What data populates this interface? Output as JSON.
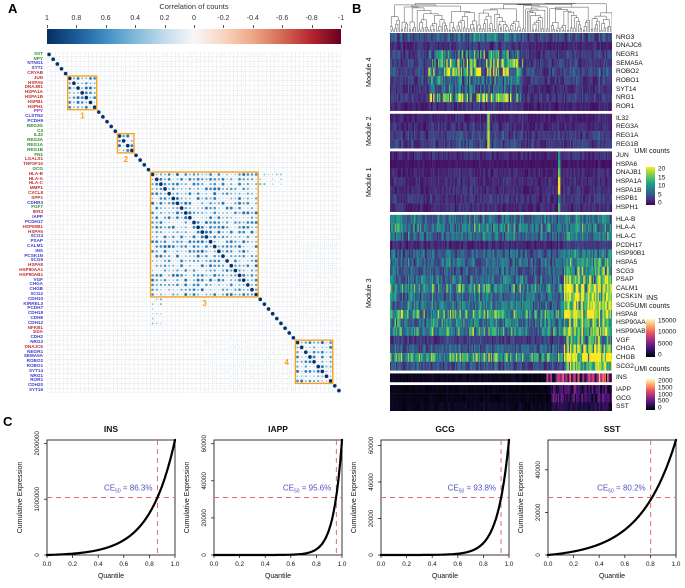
{
  "panel_labels": {
    "a": "A",
    "b": "B",
    "c": "C"
  },
  "chart_data": [
    {
      "id": "correlation-matrix",
      "type": "heatmap",
      "subtype": "corrplot-dots",
      "colorbar": {
        "title": "Correlation of counts",
        "ticks": [
          "1",
          "0.8",
          "0.6",
          "0.4",
          "0.2",
          "0",
          "-0.2",
          "-0.4",
          "-0.6",
          "-0.8",
          "-1"
        ],
        "stops": [
          "#053061",
          "#1c5a99",
          "#3e8ec4",
          "#7fb9da",
          "#c3dcec",
          "#f7f7f7",
          "#f9d5c0",
          "#eea785",
          "#d56954",
          "#b52430",
          "#67001f"
        ]
      },
      "label_palette": {
        "g": "#2e8b2e",
        "r": "#c62f2f",
        "b": "#3c3ccd",
        "p": "#8a36c9"
      },
      "genes": [
        [
          "SST",
          "g"
        ],
        [
          "NPY",
          "g"
        ],
        [
          "NTNG1",
          "b"
        ],
        [
          "SYT1",
          "b"
        ],
        [
          "CRYAB",
          "r"
        ],
        [
          "JUN",
          "r"
        ],
        [
          "HSPA6",
          "r"
        ],
        [
          "DNAJB1",
          "r"
        ],
        [
          "HSPA1A",
          "r"
        ],
        [
          "HSPA1B",
          "r"
        ],
        [
          "HSPB1",
          "r"
        ],
        [
          "HSPH1",
          "r"
        ],
        [
          "PPY",
          "p"
        ],
        [
          "CLSTN2",
          "b"
        ],
        [
          "PCDH9",
          "b"
        ],
        [
          "REG3G",
          "g"
        ],
        [
          "C3",
          "g"
        ],
        [
          "IL32",
          "g"
        ],
        [
          "REG3A",
          "g"
        ],
        [
          "REG1A",
          "g"
        ],
        [
          "REG1B",
          "g"
        ],
        [
          "FN1",
          "g"
        ],
        [
          "LGALS1",
          "r"
        ],
        [
          "TNFSF10",
          "r"
        ],
        [
          "GCG",
          "g"
        ],
        [
          "HLA-B",
          "r"
        ],
        [
          "HLA-A",
          "r"
        ],
        [
          "HLA-C",
          "r"
        ],
        [
          "MMP1",
          "r"
        ],
        [
          "CXCL8",
          "r"
        ],
        [
          "SPP1",
          "r"
        ],
        [
          "CDHR3",
          "b"
        ],
        [
          "FGF7",
          "g"
        ],
        [
          "IER3",
          "r"
        ],
        [
          "IAPP",
          "b"
        ],
        [
          "PCDH17",
          "b"
        ],
        [
          "HSP90B1",
          "r"
        ],
        [
          "HSPA5",
          "r"
        ],
        [
          "SCG3",
          "b"
        ],
        [
          "PSAP",
          "b"
        ],
        [
          "CALM1",
          "b"
        ],
        [
          "INS",
          "b"
        ],
        [
          "PCSK1N",
          "b"
        ],
        [
          "SCG5",
          "b"
        ],
        [
          "HSPA8",
          "r"
        ],
        [
          "HSP90AA1",
          "r"
        ],
        [
          "HSP90AB1",
          "r"
        ],
        [
          "VGF",
          "b"
        ],
        [
          "CHGA",
          "b"
        ],
        [
          "CHGB",
          "b"
        ],
        [
          "SCG2",
          "b"
        ],
        [
          "CDH10",
          "b"
        ],
        [
          "KIRREL3",
          "b"
        ],
        [
          "PCDH7",
          "b"
        ],
        [
          "CDH18",
          "b"
        ],
        [
          "CDH8",
          "b"
        ],
        [
          "CDH12",
          "b"
        ],
        [
          "NFKB1",
          "r"
        ],
        [
          "EDA",
          "r"
        ],
        [
          "CDH2",
          "b"
        ],
        [
          "NRG3",
          "b"
        ],
        [
          "DNAJC6",
          "r"
        ],
        [
          "NEGR1",
          "b"
        ],
        [
          "SEMA5A",
          "b"
        ],
        [
          "ROBO2",
          "b"
        ],
        [
          "ROBO1",
          "b"
        ],
        [
          "SYT14",
          "b"
        ],
        [
          "NRG1",
          "b"
        ],
        [
          "ROR1",
          "b"
        ],
        [
          "CDH20",
          "b"
        ],
        [
          "SYT16",
          "b"
        ]
      ],
      "boxes": [
        {
          "id": "1",
          "from": 5,
          "to": 11,
          "label_pos": "below"
        },
        {
          "id": "2",
          "from": 17,
          "to": 20,
          "label_pos": "below"
        },
        {
          "id": "3",
          "from": 25,
          "to": 50,
          "label_pos": "below"
        },
        {
          "id": "4",
          "from": 60,
          "to": 68,
          "label_pos": "left"
        }
      ],
      "box_color": "#f5a11f",
      "block_corr_range": [
        0.25,
        0.8
      ],
      "dot_colors": [
        [
          0,
          "#e8f1f9"
        ],
        [
          0.25,
          "#b7d4ea"
        ],
        [
          0.5,
          "#6aaed6"
        ],
        [
          0.75,
          "#2e7ebc"
        ],
        [
          1,
          "#08306b"
        ]
      ]
    },
    {
      "id": "expression-heatmap",
      "type": "heatmap",
      "has_dendrogram": true,
      "cmaps": {
        "viridis": [
          "#440154",
          "#46327e",
          "#365c8d",
          "#277f8e",
          "#1fa187",
          "#4ac16d",
          "#a0da39",
          "#fde725"
        ],
        "magma": [
          "#000004",
          "#1d1147",
          "#51127c",
          "#822681",
          "#b73779",
          "#e75263",
          "#fc8961",
          "#fec488",
          "#fcfdbf"
        ]
      },
      "groups": [
        {
          "module": "Module 4",
          "cmap": "viridis",
          "rows": [
            [
              "NRG3",
              0.2,
              0.25,
              0.03
            ],
            [
              "DNAJC6",
              0.1,
              0.1,
              0.02
            ],
            [
              "NEGR1",
              0.15,
              0.5,
              0.05
            ],
            [
              "SEMA5A",
              0.15,
              0.75,
              0.06
            ],
            [
              "ROBO2",
              0.18,
              0.85,
              0.08
            ],
            [
              "ROBO1",
              0.15,
              0.45,
              0.05
            ],
            [
              "SYT14",
              0.12,
              0.35,
              0.05
            ],
            [
              "NRG1",
              0.15,
              0.8,
              0.06
            ],
            [
              "ROR1",
              0.08,
              0.12,
              0.02
            ]
          ]
        },
        {
          "module": "Module 2",
          "cmap": "viridis",
          "rows": [
            [
              "IL32",
              0.08,
              0.06,
              0.02,
              [
                0.44,
                0.85
              ]
            ],
            [
              "REG3A",
              0.1,
              0.08,
              0.02,
              [
                0.44,
                0.9
              ]
            ],
            [
              "REG1A",
              0.15,
              0.1,
              0.03,
              [
                0.44,
                0.95
              ]
            ],
            [
              "REG1B",
              0.15,
              0.1,
              0.03,
              [
                0.44,
                0.9
              ]
            ]
          ]
        },
        {
          "module": "Module 1",
          "cmap": "viridis",
          "rows": [
            [
              "JUN",
              0.1,
              0.04,
              0.05,
              [
                0.76,
                0.5
              ]
            ],
            [
              "HSPA6",
              0.05,
              0.02,
              0.02,
              [
                0.76,
                0.6
              ]
            ],
            [
              "DNAJB1",
              0.09,
              0.04,
              0.04,
              [
                0.76,
                0.7
              ]
            ],
            [
              "HSPA1A",
              0.1,
              0.05,
              0.05,
              [
                0.76,
                0.95
              ]
            ],
            [
              "HSPA1B",
              0.1,
              0.05,
              0.05,
              [
                0.76,
                0.95
              ]
            ],
            [
              "HSPB1",
              0.12,
              0.05,
              0.06,
              [
                0.76,
                0.5
              ]
            ],
            [
              "HSPH1",
              0.1,
              0.04,
              0.05,
              [
                0.76,
                0.6
              ]
            ]
          ]
        },
        {
          "module": "Module 3",
          "cmap": "viridis",
          "rows": [
            [
              "HLA-B",
              0.3,
              0.06,
              0.12
            ],
            [
              "HLA-A",
              0.35,
              0.06,
              0.15
            ],
            [
              "HLA-C",
              0.3,
              0.06,
              0.12
            ],
            [
              "PCDH17",
              0.1,
              0.02,
              0.1
            ],
            [
              "HSP90B1",
              0.25,
              0.05,
              0.3
            ],
            [
              "HSPA5",
              0.28,
              0.05,
              0.35
            ],
            [
              "SCG3",
              0.25,
              0.05,
              0.55
            ],
            [
              "PSAP",
              0.3,
              0.06,
              0.6
            ],
            [
              "CALM1",
              0.4,
              0.08,
              0.8
            ],
            [
              "PCSK1N",
              0.3,
              0.05,
              0.9
            ],
            [
              "SCG5",
              0.32,
              0.06,
              0.9
            ],
            [
              "HSPA8",
              0.45,
              0.08,
              0.7
            ],
            [
              "HSP90AA1",
              0.35,
              0.06,
              0.5
            ],
            [
              "HSP90AB1",
              0.4,
              0.06,
              0.55
            ],
            [
              "VGF",
              0.15,
              0.03,
              0.75
            ],
            [
              "CHGA",
              0.25,
              0.05,
              1.0
            ],
            [
              "CHGB",
              0.45,
              0.08,
              1.0
            ],
            [
              "SCG2",
              0.2,
              0.04,
              0.8
            ]
          ]
        },
        {
          "module": null,
          "cmap": "magma",
          "rx": 0.7,
          "rows": [
            [
              "INS",
              0.04,
              0.02,
              0.6
            ]
          ]
        },
        {
          "module": null,
          "cmap": "magma",
          "rx": 0.72,
          "rows": [
            [
              "IAPP",
              0.03,
              0.01,
              0.32
            ],
            [
              "GCG",
              0.03,
              0.01,
              0.3
            ],
            [
              "SST",
              0.04,
              0.02,
              0.14
            ]
          ]
        }
      ],
      "legends": [
        {
          "title_lines": [
            "UMI counts"
          ],
          "cmap": "viridis",
          "ticks": [
            "20",
            "15",
            "10",
            "5",
            "0"
          ]
        },
        {
          "title_lines": [
            "INS",
            "UMI counts"
          ],
          "cmap": "magma",
          "ticks": [
            "15000",
            "10000",
            "5000",
            "0"
          ]
        },
        {
          "title_lines": [
            "UMI counts"
          ],
          "cmap": "magma",
          "ticks": [
            "2000",
            "1500",
            "1000",
            "500",
            "0"
          ]
        }
      ]
    },
    {
      "id": "cumulative-expression",
      "type": "line",
      "xlabel": "Quantile",
      "ylabel": "Cumulative Expression",
      "xticks": [
        "0.0",
        "0.2",
        "0.4",
        "0.6",
        "0.8",
        "1.0"
      ],
      "xlim": [
        0,
        1
      ],
      "ce_prefix": "CE",
      "ce_sub": "50",
      "annotation_color": "#5353c0",
      "dash_color": "#e06c6c",
      "plots": [
        {
          "title": "INS",
          "ymax": 2060000,
          "k": 5.0,
          "ce": "86.3%",
          "ceq": 0.863,
          "yticks": [
            {
              "v": 0,
              "l": "0"
            },
            {
              "v": 1000000,
              "l": "1000000"
            },
            {
              "v": 2000000,
              "l": "2000000"
            }
          ]
        },
        {
          "title": "IAPP",
          "ymax": 62000,
          "k": 15.0,
          "ce": "95.6%",
          "ceq": 0.956,
          "yticks": [
            {
              "v": 0,
              "l": "0"
            },
            {
              "v": 20000,
              "l": "20000"
            },
            {
              "v": 40000,
              "l": "40000"
            },
            {
              "v": 60000,
              "l": "60000"
            }
          ]
        },
        {
          "title": "GCG",
          "ymax": 63000,
          "k": 11.3,
          "ce": "93.8%",
          "ceq": 0.938,
          "yticks": [
            {
              "v": 0,
              "l": "0"
            },
            {
              "v": 20000,
              "l": "20000"
            },
            {
              "v": 40000,
              "l": "40000"
            },
            {
              "v": 60000,
              "l": "60000"
            }
          ]
        },
        {
          "title": "SST",
          "ymax": 54000,
          "k": 3.55,
          "ce": "80.2%",
          "ceq": 0.802,
          "yticks": [
            {
              "v": 0,
              "l": "0"
            },
            {
              "v": 20000,
              "l": "20000"
            },
            {
              "v": 40000,
              "l": "40000"
            }
          ]
        }
      ]
    }
  ]
}
